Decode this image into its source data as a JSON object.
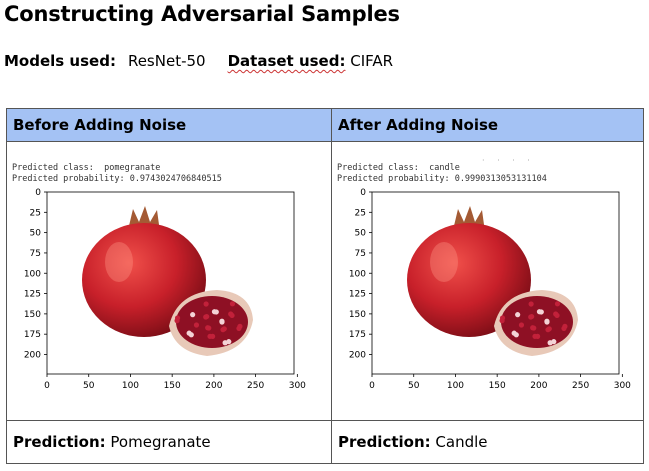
{
  "title": "Constructing Adversarial Samples",
  "meta": {
    "models_label": "Models used:",
    "models_value": "ResNet-50",
    "dataset_label": "Dataset used:",
    "dataset_value": "CIFAR"
  },
  "columns": [
    {
      "header": "Before Adding Noise",
      "output_line1": "Predicted class:  pomegranate",
      "output_line2": "Predicted probability: 0.9743024706840515",
      "prediction_label": "Prediction:",
      "prediction_value": "Pomegranate"
    },
    {
      "header": "After Adding Noise",
      "output_line1": "Predicted class:  candle",
      "output_line2": "Predicted probability: 0.9990313053131104",
      "prediction_label": "Prediction:",
      "prediction_value": "Candle"
    }
  ],
  "plot_axes": {
    "x_ticks": [
      "0",
      "50",
      "100",
      "150",
      "200",
      "250",
      "300"
    ],
    "y_ticks": [
      "0",
      "25",
      "50",
      "75",
      "100",
      "125",
      "150",
      "175",
      "200"
    ]
  },
  "colors": {
    "header_bg": "#a4c2f4",
    "fruit_red": "#c8202a",
    "seed_red": "#8e1024"
  },
  "icons": {
    "image": "pomegranate-photo"
  }
}
